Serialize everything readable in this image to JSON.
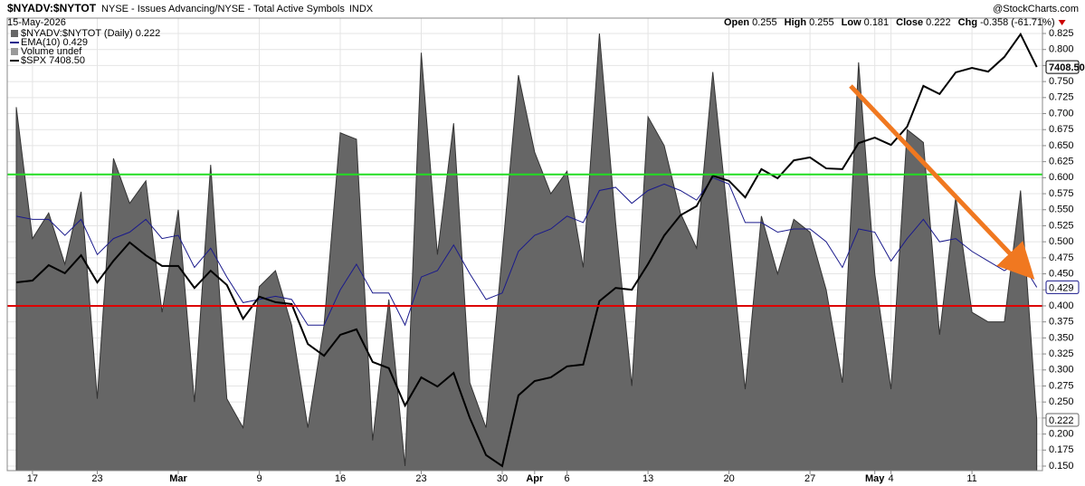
{
  "chart_data": {
    "type": "area",
    "header": {
      "symbol": "$NYADV:$NYTOT",
      "description": "NYSE - Issues Advancing/NYSE - Total Active Symbols",
      "exchange": "INDX",
      "date": "15-May-2026",
      "source": "@StockCharts.com",
      "stats": [
        {
          "label": "Open",
          "value": "0.255"
        },
        {
          "label": "High",
          "value": "0.255"
        },
        {
          "label": "Low",
          "value": "0.181"
        },
        {
          "label": "Close",
          "value": "0.222"
        },
        {
          "label": "Chg",
          "value": "-0.358 (-61.71%)",
          "color": "#cc0000"
        }
      ]
    },
    "categories": [
      null,
      "17",
      null,
      null,
      null,
      "23",
      null,
      null,
      null,
      null,
      "Mar",
      null,
      null,
      null,
      null,
      "9",
      null,
      null,
      null,
      null,
      "16",
      null,
      null,
      null,
      null,
      "23",
      null,
      null,
      null,
      null,
      "30",
      null,
      "Apr",
      null,
      "6",
      null,
      null,
      null,
      null,
      "13",
      null,
      null,
      null,
      null,
      "20",
      null,
      null,
      null,
      null,
      "27",
      null,
      null,
      null,
      "May",
      "4",
      null,
      null,
      null,
      null,
      "11",
      null,
      null,
      null,
      null
    ],
    "ylim": [
      0.15,
      0.825
    ],
    "yticks": [
      {
        "value": 0.15,
        "label": "0.150"
      },
      {
        "value": 0.175,
        "label": "0.175"
      },
      {
        "value": 0.2,
        "label": "0.200"
      },
      {
        "value": 0.225,
        "label": "0.225"
      },
      {
        "value": 0.25,
        "label": "0.250"
      },
      {
        "value": 0.275,
        "label": "0.275"
      },
      {
        "value": 0.3,
        "label": "0.300"
      },
      {
        "value": 0.325,
        "label": "0.325"
      },
      {
        "value": 0.35,
        "label": "0.350"
      },
      {
        "value": 0.375,
        "label": "0.375"
      },
      {
        "value": 0.4,
        "label": "0.400"
      },
      {
        "value": 0.425,
        "label": "0.425"
      },
      {
        "value": 0.45,
        "label": "0.450"
      },
      {
        "value": 0.475,
        "label": "0.475"
      },
      {
        "value": 0.5,
        "label": "0.500"
      },
      {
        "value": 0.525,
        "label": "0.525"
      },
      {
        "value": 0.55,
        "label": "0.550"
      },
      {
        "value": 0.575,
        "label": "0.575"
      },
      {
        "value": 0.6,
        "label": "0.600"
      },
      {
        "value": 0.625,
        "label": "0.625"
      },
      {
        "value": 0.65,
        "label": "0.650"
      },
      {
        "value": 0.675,
        "label": "0.675"
      },
      {
        "value": 0.7,
        "label": "0.700"
      },
      {
        "value": 0.725,
        "label": "0.725"
      },
      {
        "value": 0.75,
        "label": "0.750"
      },
      {
        "value": 0.775,
        "label": "0.775"
      },
      {
        "value": 0.8,
        "label": "0.800"
      },
      {
        "value": 0.825,
        "label": "0.825"
      }
    ],
    "y2lim": [
      6320,
      7500
    ],
    "grid": true,
    "legend_note": "Volume undef",
    "reference_lines": [
      {
        "value": 0.605,
        "color": "#22dd22"
      },
      {
        "value": 0.4,
        "color": "#dd0000"
      }
    ],
    "series": [
      {
        "name": "$NYADV:$NYTOT (Daily) 0.222",
        "kind": "area",
        "color": "#666666",
        "values": [
          0.71,
          0.505,
          0.545,
          0.465,
          0.578,
          0.255,
          0.63,
          0.56,
          0.595,
          0.39,
          0.55,
          0.25,
          0.62,
          0.255,
          0.21,
          0.43,
          0.455,
          0.37,
          0.21,
          0.37,
          0.67,
          0.66,
          0.19,
          0.41,
          0.15,
          0.795,
          0.48,
          0.685,
          0.28,
          0.21,
          0.48,
          0.76,
          0.64,
          0.575,
          0.61,
          0.46,
          0.825,
          0.53,
          0.275,
          0.695,
          0.65,
          0.545,
          0.49,
          0.765,
          0.52,
          0.27,
          0.54,
          0.45,
          0.535,
          0.515,
          0.425,
          0.28,
          0.78,
          0.45,
          0.27,
          0.675,
          0.655,
          0.355,
          0.57,
          0.39,
          0.375,
          0.375,
          0.58,
          0.222
        ]
      },
      {
        "name": "EMA(10) 0.429",
        "kind": "line",
        "color": "#1a1a8c",
        "values": [
          0.54,
          0.535,
          0.535,
          0.51,
          0.535,
          0.48,
          0.505,
          0.515,
          0.535,
          0.505,
          0.51,
          0.46,
          0.49,
          0.445,
          0.405,
          0.41,
          0.415,
          0.41,
          0.37,
          0.37,
          0.425,
          0.465,
          0.42,
          0.42,
          0.37,
          0.445,
          0.455,
          0.495,
          0.45,
          0.41,
          0.42,
          0.485,
          0.51,
          0.52,
          0.54,
          0.53,
          0.58,
          0.585,
          0.56,
          0.58,
          0.59,
          0.58,
          0.565,
          0.6,
          0.59,
          0.53,
          0.53,
          0.515,
          0.52,
          0.52,
          0.5,
          0.46,
          0.52,
          0.515,
          0.47,
          0.505,
          0.535,
          0.5,
          0.505,
          0.485,
          0.47,
          0.455,
          0.47,
          0.429
        ]
      },
      {
        "name": "$SPX 7408.50",
        "kind": "line",
        "color": "#000000",
        "axis": "y2",
        "values": [
          6821,
          6826,
          6868,
          6846,
          6895,
          6821,
          6880,
          6930,
          6895,
          6866,
          6866,
          6806,
          6853,
          6814,
          6722,
          6782,
          6767,
          6762,
          6653,
          6621,
          6678,
          6693,
          6604,
          6587,
          6485,
          6562,
          6537,
          6574,
          6451,
          6350,
          6320,
          6513,
          6552,
          6562,
          6592,
          6597,
          6770,
          6806,
          6801,
          6871,
          6949,
          7004,
          7029,
          7112,
          7098,
          7053,
          7130,
          7105,
          7154,
          7162,
          7132,
          7130,
          7201,
          7216,
          7196,
          7246,
          7357,
          7335,
          7394,
          7406,
          7396,
          7436,
          7498,
          7408.5
        ],
        "value_labels": [
          null,
          null,
          null,
          null,
          null,
          null,
          null,
          null,
          null,
          null,
          null,
          null,
          null,
          null,
          null,
          null,
          null,
          null,
          null,
          null,
          null,
          null,
          null,
          null,
          null,
          null,
          null,
          null,
          null,
          null,
          null,
          null,
          null,
          null,
          null,
          null,
          null,
          null,
          null,
          null,
          null,
          null,
          null,
          null,
          null,
          null,
          null,
          null,
          null,
          null,
          null,
          null,
          null,
          null,
          null,
          null,
          null,
          null,
          null,
          null,
          null,
          null,
          null,
          "7408.50"
        ]
      }
    ]
  }
}
